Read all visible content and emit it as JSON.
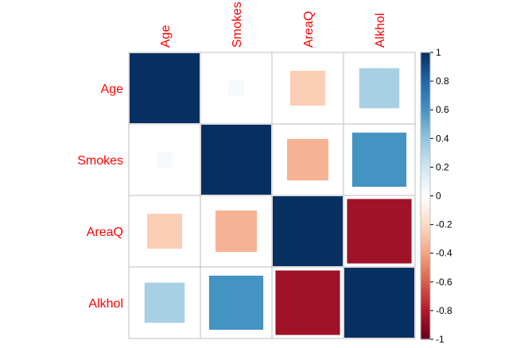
{
  "chart_data": {
    "type": "heatmap",
    "variables": [
      "Age",
      "Smokes",
      "AreaQ",
      "Alkhol"
    ],
    "matrix": [
      [
        1.0,
        0.05,
        -0.25,
        0.33
      ],
      [
        0.05,
        1.0,
        -0.35,
        0.6
      ],
      [
        -0.25,
        -0.35,
        1.0,
        -0.85
      ],
      [
        0.33,
        0.6,
        -0.85,
        1.0
      ]
    ],
    "colorbar": {
      "min": -1,
      "max": 1,
      "ticks": [
        "1",
        "0.8",
        "0.6",
        "0.4",
        "0.2",
        "0",
        "-0.2",
        "-0.4",
        "-0.6",
        "-0.8",
        "-1"
      ]
    },
    "colors": {
      "label": "#ff0000",
      "grid": "#bebebe",
      "strong_positive": "#053061",
      "strong_negative": "#67001f",
      "neutral": "#ffffff"
    }
  }
}
